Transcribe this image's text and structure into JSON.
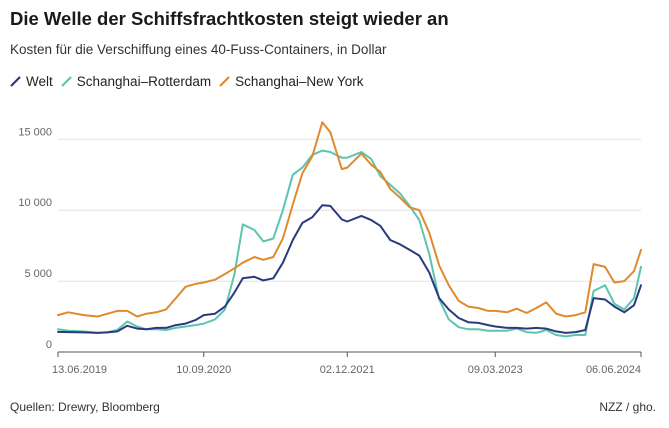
{
  "header": {
    "title": "Die Welle der Schiffsfrachtkosten steigt wieder an",
    "subtitle": "Kosten für die Verschiffung eines 40-Fuss-Containers, in Dollar"
  },
  "footer": {
    "source": "Quellen: Drewry, Bloomberg",
    "credit": "NZZ / gho."
  },
  "chart_data": {
    "type": "line",
    "title": "Die Welle der Schiffsfrachtkosten steigt wieder an",
    "subtitle": "Kosten für die Verschiffung eines 40-Fuss-Containers, in Dollar",
    "xlabel": "",
    "ylabel": "",
    "ylim": [
      0,
      16500
    ],
    "y_ticks": [
      0,
      5000,
      10000,
      15000
    ],
    "y_tick_labels": [
      "0",
      "5 000",
      "10 000",
      "15 000"
    ],
    "x_ticks": [
      "2019-06-13",
      "2020-09-10",
      "2021-12-02",
      "2023-03-09",
      "2024-06-06"
    ],
    "x_tick_labels": [
      "13.06.2019",
      "10.09.2020",
      "02.12.2021",
      "09.03.2023",
      "06.06.2024"
    ],
    "grid": "horizontal",
    "legend": "top-left",
    "series": [
      {
        "name": "Welt",
        "color": "#2b3a7d",
        "points": [
          [
            "2019-06-13",
            1420
          ],
          [
            "2019-07-15",
            1400
          ],
          [
            "2019-09-01",
            1380
          ],
          [
            "2019-10-15",
            1350
          ],
          [
            "2019-11-15",
            1380
          ],
          [
            "2019-12-15",
            1450
          ],
          [
            "2020-01-15",
            1850
          ],
          [
            "2020-02-15",
            1650
          ],
          [
            "2020-03-15",
            1600
          ],
          [
            "2020-04-15",
            1700
          ],
          [
            "2020-05-15",
            1700
          ],
          [
            "2020-06-15",
            1900
          ],
          [
            "2020-07-15",
            2000
          ],
          [
            "2020-08-15",
            2250
          ],
          [
            "2020-09-10",
            2600
          ],
          [
            "2020-10-15",
            2700
          ],
          [
            "2020-11-15",
            3200
          ],
          [
            "2020-12-15",
            4200
          ],
          [
            "2021-01-10",
            5200
          ],
          [
            "2021-02-15",
            5300
          ],
          [
            "2021-03-15",
            5050
          ],
          [
            "2021-04-15",
            5200
          ],
          [
            "2021-05-15",
            6300
          ],
          [
            "2021-06-15",
            7900
          ],
          [
            "2021-07-15",
            9100
          ],
          [
            "2021-08-15",
            9500
          ],
          [
            "2021-09-15",
            10350
          ],
          [
            "2021-10-10",
            10300
          ],
          [
            "2021-11-15",
            9350
          ],
          [
            "2021-12-02",
            9200
          ],
          [
            "2022-01-15",
            9600
          ],
          [
            "2022-02-15",
            9300
          ],
          [
            "2022-03-15",
            8900
          ],
          [
            "2022-04-15",
            7900
          ],
          [
            "2022-05-15",
            7600
          ],
          [
            "2022-06-15",
            7200
          ],
          [
            "2022-07-15",
            6800
          ],
          [
            "2022-08-15",
            5600
          ],
          [
            "2022-09-15",
            3800
          ],
          [
            "2022-10-15",
            3000
          ],
          [
            "2022-11-15",
            2400
          ],
          [
            "2022-12-15",
            2100
          ],
          [
            "2023-01-15",
            2050
          ],
          [
            "2023-02-15",
            1900
          ],
          [
            "2023-03-09",
            1800
          ],
          [
            "2023-04-15",
            1700
          ],
          [
            "2023-05-15",
            1700
          ],
          [
            "2023-06-15",
            1650
          ],
          [
            "2023-07-15",
            1700
          ],
          [
            "2023-08-15",
            1650
          ],
          [
            "2023-09-15",
            1450
          ],
          [
            "2023-10-15",
            1350
          ],
          [
            "2023-11-15",
            1400
          ],
          [
            "2023-12-15",
            1550
          ],
          [
            "2024-01-10",
            3800
          ],
          [
            "2024-02-15",
            3700
          ],
          [
            "2024-03-15",
            3200
          ],
          [
            "2024-04-15",
            2800
          ],
          [
            "2024-05-15",
            3300
          ],
          [
            "2024-06-06",
            4700
          ]
        ]
      },
      {
        "name": "Schanghai–Rotterdam",
        "color": "#5cc5b0",
        "points": [
          [
            "2019-06-13",
            1600
          ],
          [
            "2019-07-15",
            1500
          ],
          [
            "2019-09-01",
            1450
          ],
          [
            "2019-10-15",
            1350
          ],
          [
            "2019-11-15",
            1400
          ],
          [
            "2019-12-15",
            1550
          ],
          [
            "2020-01-15",
            2150
          ],
          [
            "2020-02-15",
            1800
          ],
          [
            "2020-03-15",
            1600
          ],
          [
            "2020-04-15",
            1600
          ],
          [
            "2020-05-15",
            1550
          ],
          [
            "2020-06-15",
            1700
          ],
          [
            "2020-07-15",
            1800
          ],
          [
            "2020-08-15",
            1900
          ],
          [
            "2020-09-10",
            2000
          ],
          [
            "2020-10-15",
            2300
          ],
          [
            "2020-11-15",
            3000
          ],
          [
            "2020-12-15",
            5500
          ],
          [
            "2021-01-10",
            9000
          ],
          [
            "2021-02-15",
            8600
          ],
          [
            "2021-03-15",
            7800
          ],
          [
            "2021-04-15",
            8000
          ],
          [
            "2021-05-15",
            10000
          ],
          [
            "2021-06-15",
            12500
          ],
          [
            "2021-07-15",
            13000
          ],
          [
            "2021-08-15",
            13900
          ],
          [
            "2021-09-15",
            14200
          ],
          [
            "2021-10-10",
            14100
          ],
          [
            "2021-11-15",
            13700
          ],
          [
            "2021-12-02",
            13700
          ],
          [
            "2022-01-15",
            14100
          ],
          [
            "2022-02-15",
            13600
          ],
          [
            "2022-03-15",
            12400
          ],
          [
            "2022-04-15",
            11800
          ],
          [
            "2022-05-15",
            11200
          ],
          [
            "2022-06-15",
            10300
          ],
          [
            "2022-07-15",
            9300
          ],
          [
            "2022-08-15",
            6900
          ],
          [
            "2022-09-15",
            3700
          ],
          [
            "2022-10-15",
            2300
          ],
          [
            "2022-11-15",
            1750
          ],
          [
            "2022-12-15",
            1600
          ],
          [
            "2023-01-15",
            1600
          ],
          [
            "2023-02-15",
            1500
          ],
          [
            "2023-03-09",
            1500
          ],
          [
            "2023-04-15",
            1500
          ],
          [
            "2023-05-15",
            1650
          ],
          [
            "2023-06-15",
            1400
          ],
          [
            "2023-07-15",
            1350
          ],
          [
            "2023-08-15",
            1550
          ],
          [
            "2023-09-15",
            1200
          ],
          [
            "2023-10-15",
            1100
          ],
          [
            "2023-11-15",
            1200
          ],
          [
            "2023-12-15",
            1200
          ],
          [
            "2024-01-10",
            4300
          ],
          [
            "2024-02-15",
            4700
          ],
          [
            "2024-03-15",
            3400
          ],
          [
            "2024-04-15",
            3000
          ],
          [
            "2024-05-15",
            3800
          ],
          [
            "2024-06-06",
            6000
          ]
        ]
      },
      {
        "name": "Schanghai–New York",
        "color": "#e08a2c",
        "points": [
          [
            "2019-06-13",
            2600
          ],
          [
            "2019-07-15",
            2800
          ],
          [
            "2019-09-01",
            2600
          ],
          [
            "2019-10-15",
            2500
          ],
          [
            "2019-11-15",
            2700
          ],
          [
            "2019-12-15",
            2900
          ],
          [
            "2020-01-15",
            2900
          ],
          [
            "2020-02-15",
            2500
          ],
          [
            "2020-03-15",
            2700
          ],
          [
            "2020-04-15",
            2800
          ],
          [
            "2020-05-15",
            3000
          ],
          [
            "2020-06-15",
            3800
          ],
          [
            "2020-07-15",
            4600
          ],
          [
            "2020-08-15",
            4800
          ],
          [
            "2020-09-10",
            4900
          ],
          [
            "2020-10-15",
            5100
          ],
          [
            "2020-11-15",
            5500
          ],
          [
            "2020-12-15",
            5900
          ],
          [
            "2021-01-10",
            6300
          ],
          [
            "2021-02-15",
            6700
          ],
          [
            "2021-03-15",
            6500
          ],
          [
            "2021-04-15",
            6700
          ],
          [
            "2021-05-15",
            8000
          ],
          [
            "2021-06-15",
            10400
          ],
          [
            "2021-07-15",
            12600
          ],
          [
            "2021-08-15",
            13800
          ],
          [
            "2021-09-15",
            16200
          ],
          [
            "2021-10-10",
            15500
          ],
          [
            "2021-11-15",
            12900
          ],
          [
            "2021-12-02",
            13000
          ],
          [
            "2022-01-15",
            14000
          ],
          [
            "2022-02-15",
            13200
          ],
          [
            "2022-03-15",
            12700
          ],
          [
            "2022-04-15",
            11500
          ],
          [
            "2022-05-15",
            10900
          ],
          [
            "2022-06-15",
            10200
          ],
          [
            "2022-07-15",
            10000
          ],
          [
            "2022-08-15",
            8400
          ],
          [
            "2022-09-15",
            6100
          ],
          [
            "2022-10-15",
            4700
          ],
          [
            "2022-11-15",
            3600
          ],
          [
            "2022-12-15",
            3200
          ],
          [
            "2023-01-15",
            3100
          ],
          [
            "2023-02-15",
            2900
          ],
          [
            "2023-03-09",
            2900
          ],
          [
            "2023-04-15",
            2800
          ],
          [
            "2023-05-15",
            3050
          ],
          [
            "2023-06-15",
            2750
          ],
          [
            "2023-07-15",
            3100
          ],
          [
            "2023-08-15",
            3500
          ],
          [
            "2023-09-15",
            2700
          ],
          [
            "2023-10-15",
            2500
          ],
          [
            "2023-11-15",
            2600
          ],
          [
            "2023-12-15",
            2800
          ],
          [
            "2024-01-10",
            6200
          ],
          [
            "2024-02-15",
            6000
          ],
          [
            "2024-03-15",
            4900
          ],
          [
            "2024-04-15",
            5000
          ],
          [
            "2024-05-15",
            5700
          ],
          [
            "2024-06-06",
            7200
          ]
        ]
      }
    ]
  }
}
